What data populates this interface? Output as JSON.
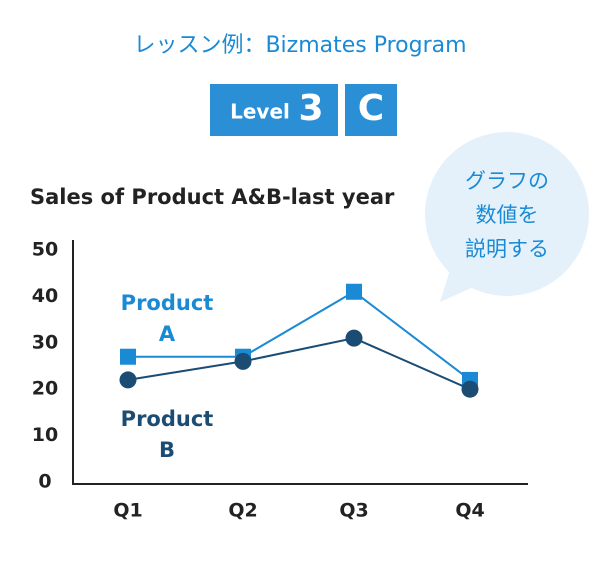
{
  "header": {
    "title": "レッスン例：Bizmates Program",
    "level_label": "Level",
    "level_value": "3",
    "level_class": "C"
  },
  "bubble": {
    "lines": [
      "グラフの",
      "数値を",
      "説明する"
    ]
  },
  "chart_data": {
    "type": "line",
    "title": "Sales of Product A&B-last year",
    "categories": [
      "Q1",
      "Q2",
      "Q3",
      "Q4"
    ],
    "series": [
      {
        "name": "Product A",
        "color": "#1a8ad4",
        "marker": "square",
        "values": [
          27,
          27,
          41,
          22
        ]
      },
      {
        "name": "Product B",
        "color": "#1b4c74",
        "marker": "circle",
        "values": [
          22,
          26,
          31,
          20
        ]
      }
    ],
    "ylim": [
      0,
      50
    ],
    "yticks": [
      0,
      10,
      20,
      30,
      40,
      50
    ],
    "grid": false
  }
}
